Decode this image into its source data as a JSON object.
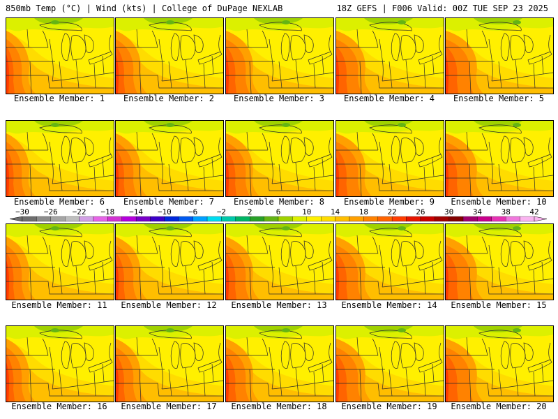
{
  "header": {
    "title_left": "850mb Temp (°C) | Wind (kts) | College of DuPage NEXLAB",
    "title_right": "18Z GEFS | F006 Valid: 00Z TUE SEP 23 2025"
  },
  "members": [
    {
      "label": "Ensemble Member: 1"
    },
    {
      "label": "Ensemble Member: 2"
    },
    {
      "label": "Ensemble Member: 3"
    },
    {
      "label": "Ensemble Member: 4"
    },
    {
      "label": "Ensemble Member: 5"
    },
    {
      "label": "Ensemble Member: 6"
    },
    {
      "label": "Ensemble Member: 7"
    },
    {
      "label": "Ensemble Member: 8"
    },
    {
      "label": "Ensemble Member: 9"
    },
    {
      "label": "Ensemble Member: 10"
    },
    {
      "label": "Ensemble Member: 11"
    },
    {
      "label": "Ensemble Member: 12"
    },
    {
      "label": "Ensemble Member: 13"
    },
    {
      "label": "Ensemble Member: 14"
    },
    {
      "label": "Ensemble Member: 15"
    },
    {
      "label": "Ensemble Member: 16"
    },
    {
      "label": "Ensemble Member: 17"
    },
    {
      "label": "Ensemble Member: 18"
    },
    {
      "label": "Ensemble Member: 19"
    },
    {
      "label": "Ensemble Member: 20"
    }
  ],
  "colorbar": {
    "tick_labels": [
      "-30",
      "-26",
      "-22",
      "-18",
      "-14",
      "-10",
      "-6",
      "-2",
      "2",
      "6",
      "10",
      "14",
      "18",
      "22",
      "26",
      "30",
      "34",
      "38",
      "42"
    ],
    "colors": [
      "#6e6e6e",
      "#8c8c8c",
      "#a5a5a5",
      "#bebebe",
      "#d2a0e6",
      "#e664e6",
      "#d232d2",
      "#b400dc",
      "#7800c8",
      "#3c00c8",
      "#0028dc",
      "#005af0",
      "#00a0ff",
      "#00dcf0",
      "#00c8aa",
      "#00b464",
      "#28a028",
      "#64b414",
      "#a0d200",
      "#dcf000",
      "#fff000",
      "#ffdc00",
      "#ffbe00",
      "#ffa000",
      "#ff8200",
      "#ff6400",
      "#ff3c00",
      "#e61400",
      "#c80000",
      "#a00000",
      "#820000",
      "#a0006e",
      "#c8008c",
      "#e632b4",
      "#f078dc",
      "#fab4f0"
    ]
  }
}
